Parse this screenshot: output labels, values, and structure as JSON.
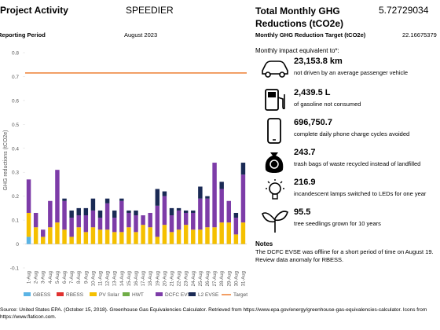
{
  "header": {
    "activity_label": "Project Activity",
    "activity": "SPEEDIER",
    "period_label": "Reporting Period",
    "period": "August 2023"
  },
  "summary": {
    "total_label": "Total Monthly GHG Reductions (tCO2e)",
    "total": "5.72729034",
    "target_label": "Monthly GHG Reduction Target (tCO2e)",
    "target": "22.16675379",
    "impact_intro": "Monthly impact equivalent to*:"
  },
  "impacts": [
    {
      "value": "23,153.8 km",
      "text": "not driven by an average passenger vehicle"
    },
    {
      "value": "2,439.5 L",
      "text": "of gasoline not consumed"
    },
    {
      "value": "696,750.7",
      "text": "complete daily phone charge cycles avoided"
    },
    {
      "value": "243.7",
      "text": "trash bags of waste recycled instead of landfilled"
    },
    {
      "value": "216.9",
      "text": "incandescent lamps switched to LEDs for one year"
    },
    {
      "value": "95.5",
      "text": "tree seedlings grown for 10 years"
    }
  ],
  "notes": {
    "title": "Notes",
    "text": "The DCFC EVSE was offline for a short period of time on August 19. Review data anomaly for RBESS."
  },
  "source": "Source: United States EPA. (October 15, 2018). Greenhouse Gas Equivalencies Calculator. Retrieved from https://www.epa.gov/energy/greenhouse-gas-equivalencies-calculator. Icons from https://www.flaticon.com.",
  "chart_data": {
    "type": "stacked-bar",
    "y_label": "GHG reductions (tCO2e)",
    "categories": [
      "1-Aug",
      "2-Aug",
      "3-Aug",
      "4-Aug",
      "5-Aug",
      "6-Aug",
      "7-Aug",
      "8-Aug",
      "9-Aug",
      "10-Aug",
      "11-Aug",
      "12-Aug",
      "13-Aug",
      "14-Aug",
      "15-Aug",
      "16-Aug",
      "17-Aug",
      "18-Aug",
      "19-Aug",
      "20-Aug",
      "21-Aug",
      "22-Aug",
      "23-Aug",
      "24-Aug",
      "25-Aug",
      "26-Aug",
      "27-Aug",
      "28-Aug",
      "29-Aug",
      "30-Aug",
      "31-Aug"
    ],
    "series": [
      {
        "name": "GBESS",
        "color": "#5bb4e5",
        "values": [
          0.03,
          0,
          0,
          0,
          0,
          0,
          0,
          0,
          0,
          0,
          0,
          0,
          0,
          0,
          0,
          0,
          0,
          0,
          0,
          0,
          0,
          0,
          0,
          0,
          0,
          0,
          0,
          0,
          0,
          0,
          0
        ]
      },
      {
        "name": "RBESS",
        "color": "#e0312f",
        "values": [
          0,
          0,
          0,
          0,
          0,
          0,
          0,
          0,
          0,
          0,
          0,
          0,
          0,
          0,
          0,
          0,
          0,
          0,
          0,
          0,
          0,
          0,
          0,
          0,
          0,
          0,
          0,
          0,
          0,
          0,
          0
        ]
      },
      {
        "name": "PV Solar",
        "color": "#f5c000",
        "values": [
          0.1,
          0.07,
          0.03,
          0.07,
          0.09,
          0.06,
          0.03,
          0.07,
          0.05,
          0.07,
          0.06,
          0.06,
          0.05,
          0.05,
          0.07,
          0.05,
          0.08,
          0.07,
          0.03,
          0.08,
          0.05,
          0.06,
          0.08,
          0.06,
          0.06,
          0.07,
          0.07,
          0.09,
          0.09,
          0.04,
          0.09
        ]
      },
      {
        "name": "HWT",
        "color": "#70ad47",
        "values": [
          0,
          0,
          0,
          0,
          0,
          0,
          0,
          0,
          0,
          0,
          0,
          0,
          0,
          0,
          0,
          0,
          0,
          0,
          0,
          0,
          0,
          0,
          0,
          0,
          0,
          0,
          0,
          0,
          0,
          0,
          0
        ]
      },
      {
        "name": "DCFC EVSE",
        "color": "#7d3ca8",
        "values": [
          0.14,
          0.06,
          0.03,
          0.11,
          0.22,
          0.12,
          0.08,
          0.05,
          0.07,
          0.07,
          0.05,
          0.11,
          0.06,
          0.13,
          0.06,
          0.07,
          0.04,
          0.06,
          0.13,
          0.12,
          0.07,
          0.08,
          0.05,
          0.07,
          0.13,
          0.12,
          0.27,
          0.14,
          0.09,
          0.07,
          0.2
        ]
      },
      {
        "name": "L2 EVSE",
        "color": "#1a2a55",
        "values": [
          0,
          0,
          0,
          0,
          0,
          0.01,
          0.03,
          0.03,
          0.03,
          0.05,
          0.03,
          0.02,
          0.03,
          0.01,
          0.01,
          0.02,
          0,
          0,
          0.07,
          0.02,
          0.03,
          0.01,
          0.01,
          0.01,
          0.05,
          0.01,
          0,
          0.03,
          0,
          0.02,
          0.05
        ]
      }
    ],
    "target": {
      "name": "Target",
      "color": "#ed7d31",
      "value": 0.715
    },
    "ylim": [
      -0.1,
      0.8
    ],
    "yticks": [
      -0.1,
      0,
      0.1,
      0.2,
      0.3,
      0.4,
      0.5,
      0.6,
      0.7,
      0.8
    ],
    "grid": false
  }
}
